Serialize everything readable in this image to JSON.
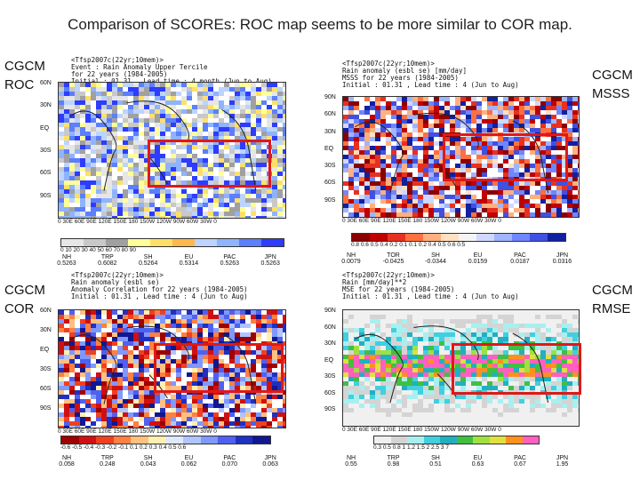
{
  "slide": {
    "title": "Comparison of SCOREs: ROC map seems to be  more similar to COR map."
  },
  "labels": {
    "tl": [
      "CGCM",
      "ROC"
    ],
    "tr": [
      "CGCM",
      "MSSS"
    ],
    "bl": [
      "CGCM",
      "COR"
    ],
    "br": [
      "CGCM",
      "RMSE"
    ]
  },
  "panels": [
    {
      "id": "roc",
      "header": [
        "<Tfsp2007c(22yr;10mem)>",
        "Event : Rain Anomaly Upper Tercile",
        "for 22 years (1984-2005)",
        "Initial : 01.31 , Lead time : 4 month (Jun to Aug)",
        "Anal : anaidat",
        "ROC area x 100"
      ],
      "lat": [
        "60N",
        "30N",
        "EQ",
        "30S",
        "60S",
        "90S"
      ],
      "lon": "0  30E  60E  90E 120E 150E 180 150W 120W 90W  60W  30W  0",
      "cbar_ticks": "0  10  20  30  40  50  60  70  80  90",
      "cbar_colors": [
        "#e6e6e6",
        "#c8c8c8",
        "#a0a0a0",
        "#ffff99",
        "#ffe066",
        "#ffb84d",
        "#bcd4ff",
        "#8fb3ff",
        "#5b7fff",
        "#2d3cff"
      ],
      "stats": [
        [
          "NH",
          "0.5263"
        ],
        [
          "TRP",
          "0.6082"
        ],
        [
          "SH",
          "0.5264"
        ],
        [
          "EU",
          "0.5314"
        ],
        [
          "PAC",
          "0.5263"
        ],
        [
          "JPN",
          "0.5263"
        ]
      ]
    },
    {
      "id": "msss",
      "header": [
        "<Tfsp2007c(22yr;10mem)>",
        "Rain anomaly (esbl se) [mm/day]",
        "MSSS for 22 years (1984-2005)",
        "Initial : 01.31 , Lead time : 4 (Jun to Aug)"
      ],
      "lat": [
        "90N",
        "60N",
        "30N",
        "EQ",
        "30S",
        "60S",
        "90S"
      ],
      "lon": "0  30E  60E  90E 120E 150E 180 150W 120W 90W  60W  30W  0",
      "cbar_ticks": "0.8  0.6  0.5  0.4  0.2  0.1  0.1  0.2  0.4  0.5  0.6  0.5",
      "cbar_colors": [
        "#8b0000",
        "#c00000",
        "#e83020",
        "#ff7040",
        "#ffb080",
        "#ffe0c0",
        "#f4f4f4",
        "#d0d8ff",
        "#a0b4ff",
        "#6f86ff",
        "#4050e0",
        "#1020a0"
      ],
      "stats": [
        [
          "NH",
          "0.0079"
        ],
        [
          "TOR",
          "-0.0425"
        ],
        [
          "SH",
          "-0.0344"
        ],
        [
          "EU",
          "0.0159"
        ],
        [
          "PAC",
          "0.0187"
        ],
        [
          "JPN",
          "0.0316"
        ]
      ]
    },
    {
      "id": "cor",
      "header": [
        "<Tfsp2007c(22yr;10mem)>",
        "Rain anomaly (esbl se)",
        "Anomaly Correlation for 22 years (1984-2005)",
        "Initial : 01.31 , Lead time : 4 (Jun to Aug)"
      ],
      "lat": [
        "60N",
        "30N",
        "EQ",
        "30S",
        "60S",
        "90S"
      ],
      "lon": "0  30E  60E  90E 120E 150E 180 150W 120W 90W  60W  30W  0",
      "cbar_ticks": "-0.6 -0.5 -0.4 -0.3 -0.2 -0.1  0.1  0.2  0.3  0.4  0.5  0.6",
      "cbar_colors": [
        "#a00000",
        "#d01010",
        "#f04020",
        "#ff8040",
        "#ffc080",
        "#fff0b0",
        "#e0e8ff",
        "#b0c4ff",
        "#8098ff",
        "#5060f0",
        "#2030c0",
        "#101890"
      ],
      "stats": [
        [
          "NH",
          "0.058"
        ],
        [
          "TRP",
          "0.248"
        ],
        [
          "SH",
          "0.043"
        ],
        [
          "EU",
          "0.062"
        ],
        [
          "PAC",
          "0.070"
        ],
        [
          "JPN",
          "0.063"
        ]
      ]
    },
    {
      "id": "rmse",
      "header": [
        "<Tfsp2007c(22yr;10mem)>",
        "Rain [mm/day]**2",
        "MSE for 22 years (1984-2005)",
        "Initial : 01.31 , Lead time : 4 (Jun to Aug)"
      ],
      "lat": [
        "90N",
        "60N",
        "30N",
        "EQ",
        "30S",
        "60S",
        "90S"
      ],
      "lon": "0  30E  60E  90E 120E 150E 180 150W 120W 90W  60W  30W  0",
      "cbar_ticks": "0.3  0.5  0.8  1  1.2  1.5  2  2.5  3  7",
      "cbar_colors": [
        "#f0f0f0",
        "#d4d4d4",
        "#a8f0f0",
        "#40d0e0",
        "#20b0c0",
        "#40c040",
        "#a0e040",
        "#e0e040",
        "#ff9020",
        "#ff60c0"
      ],
      "stats": [
        [
          "NH",
          "0.55"
        ],
        [
          "TRP",
          "0.98"
        ],
        [
          "SH",
          "0.51"
        ],
        [
          "EU",
          "0.63"
        ],
        [
          "PAC",
          "0.67"
        ],
        [
          "JPN",
          "1.95"
        ]
      ]
    }
  ]
}
